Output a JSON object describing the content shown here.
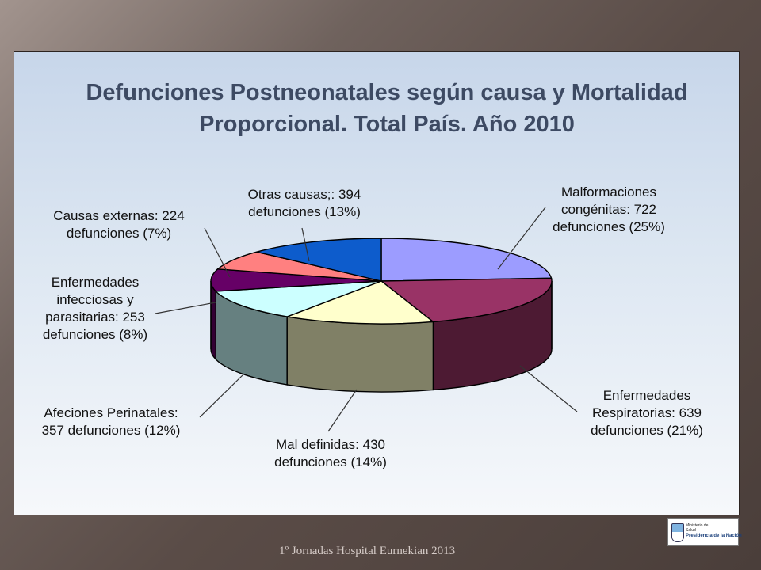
{
  "chart_data": {
    "type": "pie",
    "title": [
      "Defunciones Postneonatales según causa y Mortalidad",
      "Proporcional. Total País. Año 2010"
    ],
    "slices": [
      {
        "name": "Malformaciones congénitas",
        "value": 722,
        "percent": 25,
        "color": "#9c9cff",
        "label": [
          "Malformaciones",
          "congénitas: 722",
          "defunciones (25%)"
        ]
      },
      {
        "name": "Enfermedades Respiratorias",
        "value": 639,
        "percent": 21,
        "color": "#993366",
        "label": [
          "Enfermedades",
          "Respiratorias: 639",
          "defunciones (21%)"
        ]
      },
      {
        "name": "Mal definidas",
        "value": 430,
        "percent": 14,
        "color": "#ffffcc",
        "label": [
          "Mal definidas: 430",
          "defunciones (14%)"
        ]
      },
      {
        "name": "Afecciones Perinatales",
        "value": 357,
        "percent": 12,
        "color": "#ccffff",
        "label": [
          "Afeciones Perinatales:",
          "357 defunciones (12%)"
        ]
      },
      {
        "name": "Enfermedades infecciosas y parasitarias",
        "value": 253,
        "percent": 8,
        "color": "#660066",
        "label": [
          "Enfermedades",
          "infecciosas y",
          "parasitarias: 253",
          "defunciones (8%)"
        ]
      },
      {
        "name": "Causas externas",
        "value": 224,
        "percent": 7,
        "color": "#ff8080",
        "label": [
          "Causas externas: 224",
          "defunciones (7%)"
        ]
      },
      {
        "name": "Otras causas",
        "value": 394,
        "percent": 13,
        "color": "#0d5ccc",
        "label": [
          "Otras causas;: 394",
          "defunciones (13%)"
        ]
      }
    ]
  },
  "footer": {
    "text": "1º Jornadas Hospital Eurnekian 2013",
    "logo_small": "Ministerio de Salud",
    "logo_main": "Presidencia de la Nación"
  }
}
